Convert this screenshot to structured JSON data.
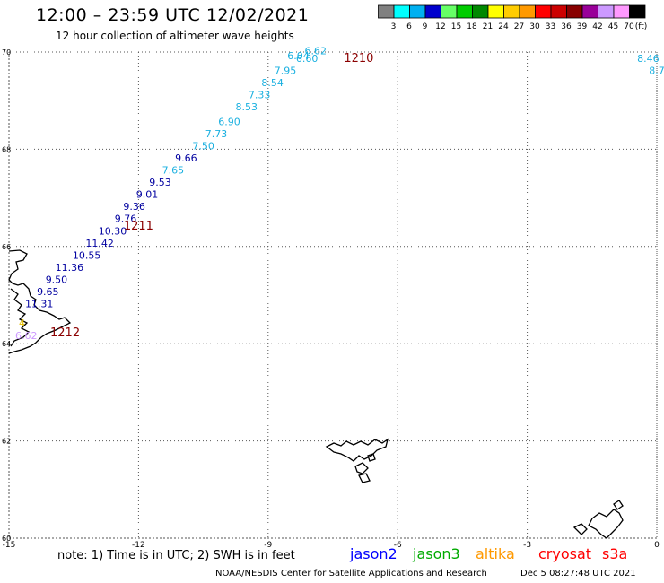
{
  "header": {
    "title": "12:00 – 23:59 UTC 12/02/2021",
    "subtitle": "12 hour collection of altimeter wave heights"
  },
  "colorbar": {
    "colors": [
      "#808080",
      "#00ffff",
      "#00b0f0",
      "#0000cd",
      "#66ff66",
      "#00cc00",
      "#008800",
      "#ffff00",
      "#ffcc00",
      "#ff9900",
      "#ff0000",
      "#cc0000",
      "#880000",
      "#990099",
      "#cc99ff",
      "#ff99ff",
      "#000000"
    ],
    "labels": [
      "3",
      "6",
      "9",
      "12",
      "15",
      "18",
      "21",
      "24",
      "27",
      "30",
      "33",
      "36",
      "39",
      "42",
      "45",
      "70",
      "(ft)"
    ]
  },
  "axes": {
    "x_ticks": [
      "-15",
      "-12",
      "-9",
      "-6",
      "-3",
      "0"
    ],
    "y_ticks": [
      "70",
      "68",
      "66",
      "64",
      "62",
      "60"
    ]
  },
  "track_labels": [
    {
      "text": "1210",
      "color": "#8b0000"
    },
    {
      "text": "1211",
      "color": "#8b0000"
    },
    {
      "text": "1212",
      "color": "#8b0000"
    }
  ],
  "wave_points": [
    {
      "lon": -7.9,
      "lat": 69.95,
      "value": "6.62",
      "color": "#1ab0e0"
    },
    {
      "lon": -8.3,
      "lat": 69.85,
      "value": "6.04",
      "color": "#1ab0e0"
    },
    {
      "lon": -8.1,
      "lat": 69.8,
      "value": "6.60",
      "color": "#1ab0e0"
    },
    {
      "lon": -8.6,
      "lat": 69.55,
      "value": "7.95",
      "color": "#1ab0e0"
    },
    {
      "lon": -8.9,
      "lat": 69.3,
      "value": "8.54",
      "color": "#1ab0e0"
    },
    {
      "lon": -9.2,
      "lat": 69.05,
      "value": "7.33",
      "color": "#1ab0e0"
    },
    {
      "lon": -9.5,
      "lat": 68.8,
      "value": "8.53",
      "color": "#1ab0e0"
    },
    {
      "lon": -9.9,
      "lat": 68.5,
      "value": "6.90",
      "color": "#1ab0e0"
    },
    {
      "lon": -10.2,
      "lat": 68.25,
      "value": "7.73",
      "color": "#1ab0e0"
    },
    {
      "lon": -10.5,
      "lat": 68.0,
      "value": "7.50",
      "color": "#1ab0e0"
    },
    {
      "lon": -10.9,
      "lat": 67.75,
      "value": "9.66",
      "color": "#0000a0"
    },
    {
      "lon": -11.2,
      "lat": 67.5,
      "value": "7.65",
      "color": "#1ab0e0"
    },
    {
      "lon": -11.5,
      "lat": 67.25,
      "value": "9.53",
      "color": "#0000a0"
    },
    {
      "lon": -11.8,
      "lat": 67.0,
      "value": "9.01",
      "color": "#0000a0"
    },
    {
      "lon": -12.1,
      "lat": 66.75,
      "value": "9.36",
      "color": "#0000a0"
    },
    {
      "lon": -12.3,
      "lat": 66.5,
      "value": "9.76",
      "color": "#0000a0"
    },
    {
      "lon": -12.6,
      "lat": 66.25,
      "value": "10.30",
      "color": "#0000a0"
    },
    {
      "lon": -12.9,
      "lat": 66.0,
      "value": "11.42",
      "color": "#0000a0"
    },
    {
      "lon": -13.2,
      "lat": 65.75,
      "value": "10.55",
      "color": "#0000a0"
    },
    {
      "lon": -13.6,
      "lat": 65.5,
      "value": "11.36",
      "color": "#0000a0"
    },
    {
      "lon": -13.9,
      "lat": 65.25,
      "value": "9.50",
      "color": "#0000a0"
    },
    {
      "lon": -14.1,
      "lat": 65.0,
      "value": "9.65",
      "color": "#0000a0"
    },
    {
      "lon": -14.3,
      "lat": 64.75,
      "value": "11.31",
      "color": "#0000a0"
    },
    {
      "lon": -14.7,
      "lat": 64.35,
      "value": "4",
      "color": "#e6c000"
    },
    {
      "lon": -14.6,
      "lat": 64.1,
      "value": "6.62",
      "color": "#cc99ff"
    },
    {
      "lon": -0.2,
      "lat": 69.8,
      "value": "8.46",
      "color": "#1ab0e0"
    },
    {
      "lon": 0.0,
      "lat": 69.55,
      "value": "8.7",
      "color": "#1ab0e0"
    }
  ],
  "footer": {
    "note": "note: 1) Time is in UTC; 2) SWH is in feet",
    "legend": [
      {
        "name": "jason2",
        "color": "#0000ff"
      },
      {
        "name": "jason3",
        "color": "#00aa00"
      },
      {
        "name": "altika",
        "color": "#ff9900"
      },
      {
        "name": "cryosat",
        "color": "#ff0000"
      },
      {
        "name": "s3a",
        "color": "#ff0000"
      }
    ],
    "credit": "NOAA/NESDIS Center for Satellite Applications and Research",
    "timestamp": "Dec  5 08:27:48 UTC 2021"
  }
}
